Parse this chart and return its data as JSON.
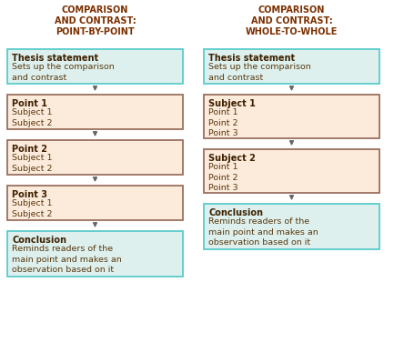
{
  "title_left": "COMPARISON\nAND CONTRAST:\nPOINT-BY-POINT",
  "title_right": "COMPARISON\nAND CONTRAST:\nWHOLE-TO-WHOLE",
  "left_boxes": [
    {
      "title": "Thesis statement",
      "body": "Sets up the comparison\nand contrast",
      "color": "#ddf0ee",
      "border": "#5bcbcb"
    },
    {
      "title": "Point 1",
      "body": "Subject 1\nSubject 2",
      "color": "#fceadb",
      "border": "#9a7060"
    },
    {
      "title": "Point 2",
      "body": "Subject 1\nSubject 2",
      "color": "#fceadb",
      "border": "#9a7060"
    },
    {
      "title": "Point 3",
      "body": "Subject 1\nSubject 2",
      "color": "#fceadb",
      "border": "#9a7060"
    },
    {
      "title": "Conclusion",
      "body": "Reminds readers of the\nmain point and makes an\nobservation based on it",
      "color": "#ddf0ee",
      "border": "#5bcbcb"
    }
  ],
  "right_boxes": [
    {
      "title": "Thesis statement",
      "body": "Sets up the comparison\nand contrast",
      "color": "#ddf0ee",
      "border": "#5bcbcb"
    },
    {
      "title": "Subject 1",
      "body": "Point 1\nPoint 2\nPoint 3",
      "color": "#fceadb",
      "border": "#9a7060"
    },
    {
      "title": "Subject 2",
      "body": "Point 1\nPoint 2\nPoint 3",
      "color": "#fceadb",
      "border": "#9a7060"
    },
    {
      "title": "Conclusion",
      "body": "Reminds readers of the\nmain point and makes an\nobservation based on it",
      "color": "#ddf0ee",
      "border": "#5bcbcb"
    }
  ],
  "bg_color": "#ffffff",
  "title_color": "#7B3000",
  "box_title_color": "#3d2000",
  "box_body_color": "#5a3a10",
  "arrow_color": "#666666",
  "fig_w": 4.33,
  "fig_h": 3.88,
  "dpi": 100
}
